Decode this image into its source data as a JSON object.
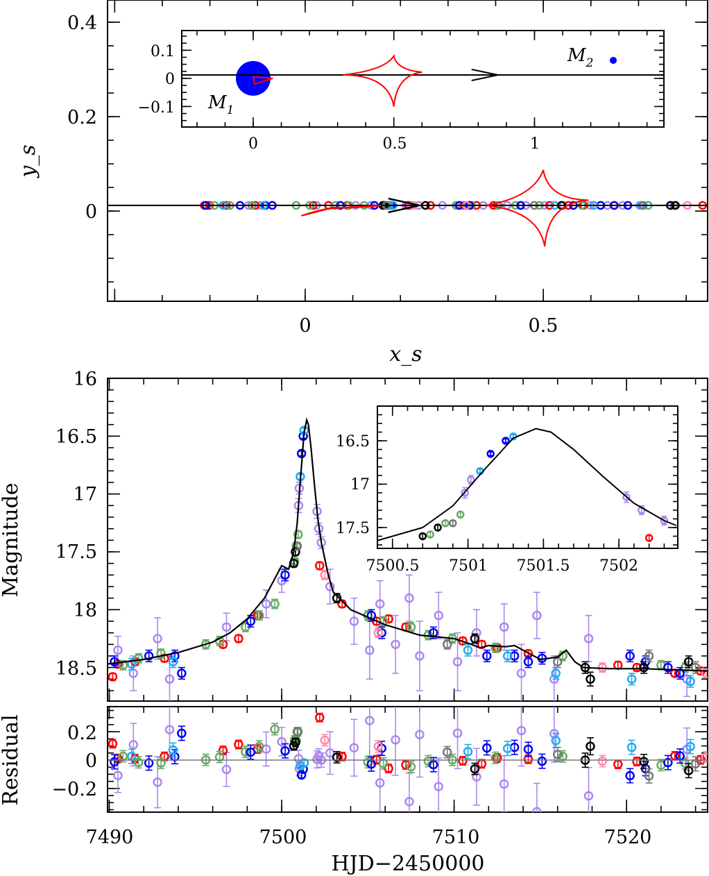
{
  "chart_data": [
    {
      "type": "scatter",
      "panel": "source trajectory",
      "xlabel": "x_s",
      "ylabel": "y_s",
      "xlim": [
        -0.415,
        0.845
      ],
      "ylim": [
        -0.191,
        0.447
      ],
      "xticks": [
        "0",
        "0.5"
      ],
      "yticks": [
        "0",
        "0.2",
        "0.4"
      ],
      "trajectory": {
        "y": 0.012,
        "direction": "right"
      },
      "caustics_color": "#ff0000",
      "inset": {
        "xlim": [
          -0.254,
          1.46
        ],
        "ylim": [
          -0.173,
          0.17
        ],
        "xticks": [
          "0",
          "0.5",
          "1"
        ],
        "yticks": [
          "−0.1",
          "0",
          "0.1"
        ],
        "M1": {
          "label": "M",
          "sub": "1",
          "x": 0,
          "y": 0
        },
        "M2": {
          "label": "M",
          "sub": "2",
          "x": 1.28,
          "y": 0.064
        },
        "lens_color": "#0000ff"
      }
    },
    {
      "type": "scatter",
      "panel": "light curve",
      "ylabel": "Magnitude",
      "xlim": [
        7489.9,
        7524.7
      ],
      "ylim": [
        18.79,
        16.0
      ],
      "yticks": [
        "16",
        "16.5",
        "17",
        "17.5",
        "18",
        "18.5"
      ],
      "model": [
        [
          7489.9,
          18.47
        ],
        [
          7492,
          18.43
        ],
        [
          7494,
          18.37
        ],
        [
          7496,
          18.28
        ],
        [
          7497,
          18.2
        ],
        [
          7498,
          18.08
        ],
        [
          7499,
          17.9
        ],
        [
          7500,
          17.62
        ],
        [
          7500.4,
          17.65
        ],
        [
          7500.7,
          17.5
        ],
        [
          7500.9,
          17.25
        ],
        [
          7501.1,
          16.85
        ],
        [
          7501.3,
          16.47
        ],
        [
          7501.45,
          16.36
        ],
        [
          7501.55,
          16.4
        ],
        [
          7501.7,
          16.6
        ],
        [
          7501.9,
          16.92
        ],
        [
          7502.1,
          17.22
        ],
        [
          7502.3,
          17.42
        ],
        [
          7502.4,
          17.49
        ],
        [
          7502.7,
          17.7
        ],
        [
          7503,
          17.85
        ],
        [
          7504,
          18.0
        ],
        [
          7506,
          18.13
        ],
        [
          7508,
          18.22
        ],
        [
          7510,
          18.25
        ],
        [
          7511,
          18.3
        ],
        [
          7511.5,
          18.33
        ],
        [
          7512,
          18.31
        ],
        [
          7513,
          18.32
        ],
        [
          7513.5,
          18.31
        ],
        [
          7514,
          18.35
        ],
        [
          7515,
          18.43
        ],
        [
          7516,
          18.41
        ],
        [
          7516.5,
          18.35
        ],
        [
          7517,
          18.45
        ],
        [
          7517.5,
          18.5
        ],
        [
          7519,
          18.51
        ],
        [
          7521,
          18.51
        ],
        [
          7524.7,
          18.53
        ]
      ],
      "series": [
        {
          "color": "#aa88ee",
          "points": [
            [
              7490.5,
              18.35,
              0.12
            ],
            [
              7491.4,
              18.55,
              0.15
            ],
            [
              7492.8,
              18.25,
              0.18
            ],
            [
              7493.5,
              18.6,
              0.2
            ],
            [
              7496.8,
              18.15,
              0.12
            ],
            [
              7499.1,
              17.95,
              0.12
            ],
            [
              7500.0,
              17.75,
              0.1
            ],
            [
              7500.98,
              17.1,
              0.06
            ],
            [
              7501.02,
              16.95,
              0.05
            ],
            [
              7502.05,
              17.15,
              0.06
            ],
            [
              7502.15,
              17.3,
              0.05
            ],
            [
              7502.3,
              17.42,
              0.05
            ],
            [
              7502.8,
              17.8,
              0.15
            ],
            [
              7504.2,
              18.1,
              0.2
            ],
            [
              7505.1,
              18.35,
              0.25
            ],
            [
              7505.7,
              17.95,
              0.2
            ],
            [
              7506.6,
              18.3,
              0.25
            ],
            [
              7507.4,
              17.9,
              0.2
            ],
            [
              7508.0,
              18.4,
              0.3
            ],
            [
              7509.1,
              18.05,
              0.2
            ],
            [
              7510.2,
              18.45,
              0.25
            ],
            [
              7511.3,
              18.2,
              0.2
            ],
            [
              7512.9,
              18.15,
              0.2
            ],
            [
              7513.9,
              18.55,
              0.25
            ],
            [
              7514.8,
              18.05,
              0.2
            ],
            [
              7515.8,
              18.6,
              0.2
            ],
            [
              7517.8,
              18.25,
              0.2
            ],
            [
              7523.5,
              18.6,
              0.15
            ]
          ]
        },
        {
          "color": "#ff0000",
          "points": [
            [
              7490.2,
              18.58,
              0.03
            ],
            [
              7490.5,
              18.47,
              0.03
            ],
            [
              7491.5,
              18.45,
              0.03
            ],
            [
              7493.2,
              18.42,
              0.03
            ],
            [
              7496.6,
              18.3,
              0.03
            ],
            [
              7497.5,
              18.25,
              0.03
            ],
            [
              7498.6,
              18.05,
              0.03
            ],
            [
              7502.2,
              17.62,
              0.03
            ],
            [
              7503.5,
              17.95,
              0.03
            ],
            [
              7505.5,
              18.1,
              0.03
            ],
            [
              7506.2,
              18.08,
              0.03
            ],
            [
              7507.2,
              18.15,
              0.03
            ],
            [
              7510.5,
              18.27,
              0.03
            ],
            [
              7511.6,
              18.3,
              0.03
            ],
            [
              7512.5,
              18.33,
              0.03
            ],
            [
              7514.3,
              18.38,
              0.03
            ],
            [
              7519.5,
              18.48,
              0.03
            ],
            [
              7520.6,
              18.5,
              0.03
            ],
            [
              7522.8,
              18.55,
              0.03
            ],
            [
              7524.3,
              18.53,
              0.03
            ]
          ]
        },
        {
          "color": "#66aa66",
          "points": [
            [
              7490.8,
              18.48,
              0.04
            ],
            [
              7491.7,
              18.42,
              0.04
            ],
            [
              7493.0,
              18.38,
              0.04
            ],
            [
              7495.6,
              18.3,
              0.04
            ],
            [
              7496.4,
              18.27,
              0.04
            ],
            [
              7497.9,
              18.15,
              0.04
            ],
            [
              7498.7,
              18.05,
              0.04
            ],
            [
              7499.6,
              17.95,
              0.04
            ],
            [
              7500.75,
              17.58,
              0.03
            ],
            [
              7500.85,
              17.45,
              0.03
            ],
            [
              7500.95,
              17.35,
              0.03
            ],
            [
              7505.0,
              18.05,
              0.04
            ],
            [
              7505.9,
              18.1,
              0.04
            ],
            [
              7507.5,
              18.15,
              0.04
            ],
            [
              7508.5,
              18.22,
              0.04
            ],
            [
              7509.9,
              18.25,
              0.04
            ],
            [
              7512.4,
              18.33,
              0.04
            ],
            [
              7516.3,
              18.4,
              0.04
            ],
            [
              7522.0,
              18.48,
              0.04
            ],
            [
              7523.4,
              18.5,
              0.04
            ]
          ]
        },
        {
          "color": "#0000ee",
          "points": [
            [
              7490.3,
              18.45,
              0.05
            ],
            [
              7492.3,
              18.4,
              0.05
            ],
            [
              7493.8,
              18.4,
              0.05
            ],
            [
              7494.2,
              18.55,
              0.05
            ],
            [
              7498.2,
              18.1,
              0.05
            ],
            [
              7500.2,
              17.7,
              0.05
            ],
            [
              7501.15,
              16.65,
              0.02
            ],
            [
              7501.25,
              16.5,
              0.02
            ],
            [
              7505.2,
              18.05,
              0.05
            ],
            [
              7505.8,
              18.2,
              0.05
            ],
            [
              7508.8,
              18.2,
              0.05
            ],
            [
              7511.9,
              18.4,
              0.05
            ],
            [
              7513.5,
              18.4,
              0.05
            ],
            [
              7514.3,
              18.45,
              0.05
            ],
            [
              7515.1,
              18.42,
              0.05
            ],
            [
              7520.2,
              18.4,
              0.05
            ],
            [
              7521.1,
              18.45,
              0.05
            ],
            [
              7522.4,
              18.5,
              0.05
            ],
            [
              7523.1,
              18.55,
              0.05
            ]
          ]
        },
        {
          "color": "#22aaee",
          "points": [
            [
              7491.3,
              18.47,
              0.05
            ],
            [
              7493.7,
              18.45,
              0.05
            ],
            [
              7501.08,
              16.85,
              0.02
            ],
            [
              7501.3,
              16.45,
              0.02
            ],
            [
              7510.8,
              18.35,
              0.05
            ],
            [
              7513.1,
              18.4,
              0.05
            ],
            [
              7515.9,
              18.55,
              0.05
            ],
            [
              7520.3,
              18.6,
              0.05
            ],
            [
              7523.7,
              18.62,
              0.05
            ]
          ]
        },
        {
          "color": "#000000",
          "points": [
            [
              7500.7,
              17.6,
              0.03
            ],
            [
              7500.8,
              17.5,
              0.03
            ],
            [
              7503.2,
              17.9,
              0.04
            ],
            [
              7511.2,
              18.25,
              0.04
            ],
            [
              7517.6,
              18.5,
              0.05
            ],
            [
              7517.9,
              18.6,
              0.06
            ],
            [
              7521.0,
              18.5,
              0.05
            ],
            [
              7523.6,
              18.45,
              0.05
            ]
          ]
        },
        {
          "color": "#777777",
          "points": [
            [
              7500.9,
              17.45,
              0.03
            ],
            [
              7509.6,
              18.3,
              0.04
            ],
            [
              7516.0,
              18.45,
              0.05
            ],
            [
              7521.3,
              18.4,
              0.05
            ],
            [
              7524.0,
              18.5,
              0.05
            ]
          ]
        },
        {
          "color": "#ff88aa",
          "points": [
            [
              7502.5,
              17.7,
              0.04
            ],
            [
              7505.6,
              18.2,
              0.04
            ],
            [
              7518.6,
              18.5,
              0.04
            ],
            [
              7524.6,
              18.55,
              0.04
            ]
          ]
        }
      ],
      "inset": {
        "xlim": [
          7500.4,
          7502.39
        ],
        "ylim": [
          17.74,
          16.1
        ],
        "xticks": [
          "7500.5",
          "7501",
          "7501.5",
          "7502"
        ],
        "yticks": [
          "16.5",
          "17",
          "17.5"
        ]
      }
    },
    {
      "type": "scatter",
      "panel": "residual",
      "ylabel": "Residual",
      "xlabel": "HJD−2450000",
      "ylim": [
        -0.367,
        0.377
      ],
      "yticks": [
        "−0.2",
        "0",
        "0.2"
      ],
      "xticks": [
        "7490",
        "7500",
        "7510",
        "7520"
      ]
    }
  ]
}
